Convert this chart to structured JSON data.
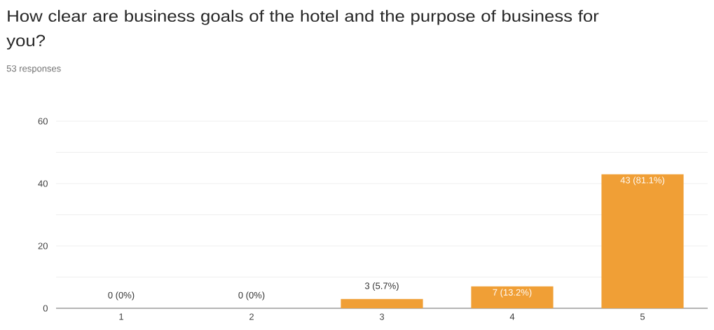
{
  "chart_data": {
    "type": "bar",
    "title": "How clear are business goals of the hotel and the purpose of business for you?",
    "subtitle": "53 responses",
    "categories": [
      "1",
      "2",
      "3",
      "4",
      "5"
    ],
    "values": [
      0,
      0,
      3,
      7,
      43
    ],
    "value_labels": [
      "0 (0%)",
      "0 (0%)",
      "3 (5.7%)",
      "7 (13.2%)",
      "43 (81.1%)"
    ],
    "color": "#f09f36",
    "ylim": [
      0,
      60
    ],
    "yticks": [
      0,
      {
        "value": 10,
        "label": null
      },
      20,
      {
        "value": 30,
        "label": null
      },
      40,
      {
        "value": 50,
        "label": null
      },
      60
    ],
    "grid": "y"
  }
}
